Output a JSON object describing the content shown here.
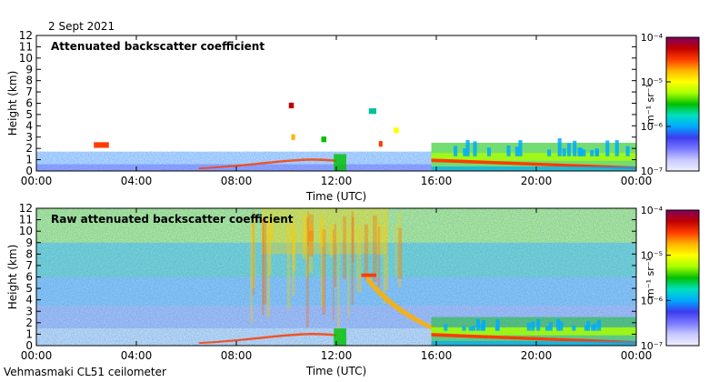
{
  "date_label": "2 Sept 2021",
  "instrument_label": "Vehmasmaki CL51 ceilometer",
  "colorbar": {
    "colors": [
      "#f0f0ff",
      "#c8c8ff",
      "#7878ff",
      "#3c3cf0",
      "#00aaff",
      "#00e0c0",
      "#00c000",
      "#aaff00",
      "#ffff00",
      "#ffb400",
      "#ff3c00",
      "#c00000",
      "#800060"
    ]
  },
  "chart_data": [
    {
      "type": "heatmap",
      "title": "Attenuated backscatter coefficient",
      "xlabel": "Time (UTC)",
      "ylabel": "Height (km)",
      "x_ticks": [
        "00:00",
        "04:00",
        "08:00",
        "12:00",
        "16:00",
        "20:00",
        "00:00"
      ],
      "xlim_hours": [
        0,
        24
      ],
      "y_ticks": [
        0,
        1,
        2,
        3,
        4,
        5,
        6,
        7,
        8,
        9,
        10,
        11,
        12
      ],
      "ylim": [
        0,
        12
      ],
      "colorbar": {
        "label": "m⁻¹ sr⁻¹",
        "ticks": [
          "10⁻⁷",
          "10⁻⁶",
          "10⁻⁵",
          "10⁻⁴"
        ],
        "scale": "log",
        "range": [
          1e-07,
          0.0001
        ]
      }
    },
    {
      "type": "heatmap",
      "title": "Raw attenuated backscatter coefficient",
      "xlabel": "Time (UTC)",
      "ylabel": "Height (km)",
      "x_ticks": [
        "00:00",
        "04:00",
        "08:00",
        "12:00",
        "16:00",
        "20:00",
        "00:00"
      ],
      "xlim_hours": [
        0,
        24
      ],
      "y_ticks": [
        0,
        1,
        2,
        3,
        4,
        5,
        6,
        7,
        8,
        9,
        10,
        11,
        12
      ],
      "ylim": [
        0,
        12
      ],
      "colorbar": {
        "label": "m⁻¹ sr⁻¹",
        "ticks": [
          "10⁻⁷",
          "10⁻⁶",
          "10⁻⁵",
          "10⁻⁴"
        ],
        "scale": "log",
        "range": [
          1e-07,
          0.0001
        ]
      }
    }
  ]
}
